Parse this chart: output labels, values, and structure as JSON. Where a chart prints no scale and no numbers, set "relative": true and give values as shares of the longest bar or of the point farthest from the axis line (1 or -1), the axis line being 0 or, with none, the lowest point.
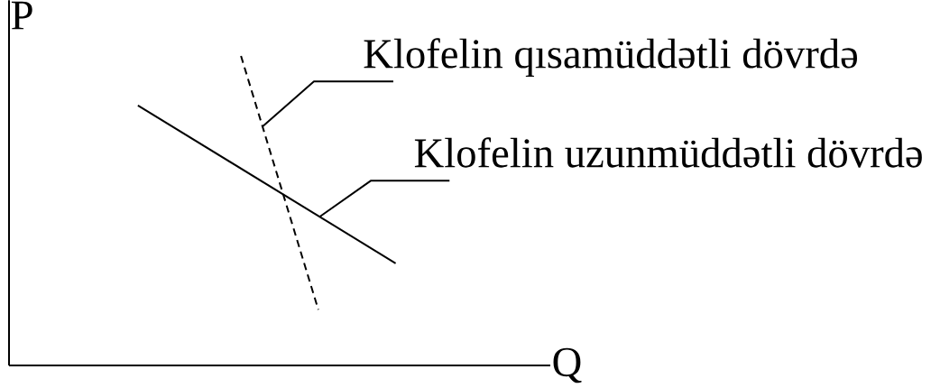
{
  "chart_data": {
    "type": "line",
    "relative": true,
    "xlabel": "Q",
    "ylabel": "P",
    "legend": "top right",
    "categories": [
      null,
      null,
      null,
      null,
      null,
      null,
      null,
      null,
      null,
      null,
      null,
      null,
      null,
      null,
      null,
      null,
      null,
      null,
      null,
      null,
      null,
      null
    ],
    "series": [
      {
        "name": "Klofelin qısamüddətli dövrdə",
        "color": "#000000",
        "line_style": "dashed",
        "values": [
          null,
          null,
          null,
          null,
          null,
          null,
          null,
          null,
          null,
          1.0,
          null,
          null,
          0.18,
          null,
          null,
          null,
          null,
          null,
          null,
          null,
          null,
          null
        ]
      },
      {
        "name": "Klofelin uzunmüddətli dövrdə",
        "color": "#000000",
        "line_style": "solid",
        "values": [
          null,
          null,
          null,
          null,
          null,
          0.84,
          null,
          null,
          null,
          null,
          null,
          null,
          null,
          null,
          null,
          0.33,
          null,
          null,
          null,
          null,
          null,
          null
        ]
      }
    ]
  }
}
